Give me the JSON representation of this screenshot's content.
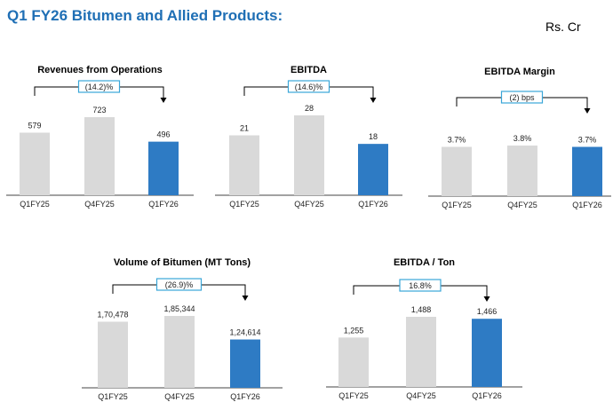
{
  "page": {
    "title": "Q1 FY26 Bitumen and Allied Products:",
    "unit": "Rs. Cr"
  },
  "colors": {
    "title": "#1f6fb5",
    "bar_prior": "#d9d9d9",
    "bar_current": "#2e7bc4",
    "badge_border": "#3aa6d8",
    "axis": "#444444"
  },
  "chart_data": [
    {
      "type": "bar",
      "title": "Revenues from Operations",
      "categories": [
        "Q1FY25",
        "Q4FY25",
        "Q1FY26"
      ],
      "values": [
        579,
        723,
        496
      ],
      "value_labels": [
        "579",
        "723",
        "496"
      ],
      "change_label": "(14.2)%",
      "ylim": [
        0,
        800
      ]
    },
    {
      "type": "bar",
      "title": "EBITDA",
      "categories": [
        "Q1FY25",
        "Q4FY25",
        "Q1FY26"
      ],
      "values": [
        21,
        28,
        18
      ],
      "value_labels": [
        "21",
        "28",
        "18"
      ],
      "change_label": "(14.6)%",
      "ylim": [
        0,
        32
      ]
    },
    {
      "type": "bar",
      "title": "EBITDA Margin",
      "categories": [
        "Q1FY25",
        "Q4FY25",
        "Q1FY26"
      ],
      "values": [
        3.7,
        3.8,
        3.7
      ],
      "value_labels": [
        "3.7%",
        "3.8%",
        "3.7%"
      ],
      "change_label": "(2) bps",
      "ylim": [
        0,
        6
      ]
    },
    {
      "type": "bar",
      "title": "Volume of Bitumen (MT Tons)",
      "categories": [
        "Q1FY25",
        "Q4FY25",
        "Q1FY26"
      ],
      "values": [
        170478,
        185344,
        124614
      ],
      "value_labels": [
        "1,70,478",
        "1,85,344",
        "1,24,614"
      ],
      "change_label": "(26.9)%",
      "ylim": [
        0,
        200000
      ]
    },
    {
      "type": "bar",
      "title": "EBITDA / Ton",
      "categories": [
        "Q1FY25",
        "Q4FY25",
        "Q1FY26"
      ],
      "values": [
        1255,
        1488,
        1466
      ],
      "value_labels": [
        "1,255",
        "1,488",
        "1,466"
      ],
      "change_label": "16.8%",
      "ylim": [
        700,
        1560
      ]
    }
  ]
}
